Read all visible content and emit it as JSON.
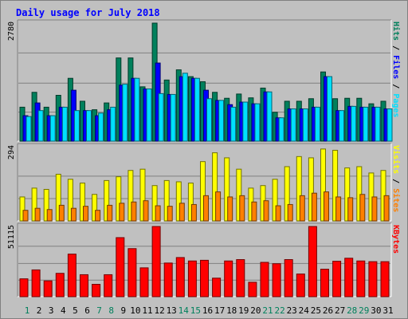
{
  "chart_data": [
    {
      "type": "bar",
      "title": "Daily usage for July 2018",
      "categories": [
        "1",
        "2",
        "3",
        "4",
        "5",
        "6",
        "7",
        "8",
        "9",
        "10",
        "11",
        "12",
        "13",
        "14",
        "15",
        "16",
        "17",
        "18",
        "19",
        "20",
        "21",
        "22",
        "23",
        "24",
        "25",
        "26",
        "27",
        "28",
        "29",
        "30",
        "31"
      ],
      "weekend_days": [
        "1",
        "7",
        "8",
        "14",
        "15",
        "21",
        "22",
        "28",
        "29"
      ],
      "ytick": "2780",
      "ylim": [
        0,
        2780
      ],
      "ylabel": [
        "Pages",
        "Files",
        "Hits"
      ],
      "series": [
        {
          "name": "Hits",
          "color": "#00805c",
          "values": [
            800,
            1150,
            800,
            1080,
            1480,
            940,
            740,
            900,
            1960,
            1960,
            1280,
            2780,
            1440,
            1680,
            1520,
            1400,
            1150,
            1010,
            1110,
            1020,
            1250,
            680,
            940,
            940,
            1000,
            1630,
            1000,
            1010,
            1010,
            880,
            940
          ]
        },
        {
          "name": "Files",
          "color": "#0000ff",
          "values": [
            600,
            900,
            600,
            800,
            1200,
            720,
            600,
            740,
            1320,
            1480,
            1230,
            1840,
            1100,
            1520,
            1480,
            1200,
            960,
            860,
            920,
            880,
            1160,
            550,
            760,
            760,
            800,
            1520,
            720,
            820,
            800,
            800,
            760
          ]
        },
        {
          "name": "Pages",
          "color": "#00e0ff",
          "values": [
            580,
            720,
            600,
            800,
            720,
            720,
            660,
            800,
            1340,
            1480,
            1230,
            1120,
            1100,
            1600,
            1480,
            1000,
            960,
            800,
            920,
            880,
            1160,
            550,
            760,
            760,
            800,
            1520,
            720,
            820,
            800,
            800,
            760
          ]
        }
      ]
    },
    {
      "type": "bar",
      "categories": [
        "1",
        "2",
        "3",
        "4",
        "5",
        "6",
        "7",
        "8",
        "9",
        "10",
        "11",
        "12",
        "13",
        "14",
        "15",
        "16",
        "17",
        "18",
        "19",
        "20",
        "21",
        "22",
        "23",
        "24",
        "25",
        "26",
        "27",
        "28",
        "29",
        "30",
        "31"
      ],
      "ytick": "294",
      "ylim": [
        0,
        294
      ],
      "ylabel": [
        "Sites",
        "Visits"
      ],
      "series": [
        {
          "name": "Visits",
          "color": "#ffff00",
          "values": [
            95,
            130,
            125,
            185,
            165,
            150,
            105,
            160,
            175,
            200,
            205,
            140,
            160,
            155,
            150,
            235,
            270,
            250,
            205,
            130,
            140,
            165,
            215,
            255,
            250,
            285,
            280,
            210,
            215,
            190,
            200
          ]
        },
        {
          "name": "Sites",
          "color": "#ff8000",
          "values": [
            42,
            50,
            45,
            62,
            50,
            58,
            42,
            62,
            70,
            75,
            80,
            60,
            58,
            70,
            65,
            100,
            115,
            95,
            100,
            75,
            80,
            60,
            65,
            100,
            110,
            115,
            95,
            92,
            105,
            95,
            100
          ]
        }
      ]
    },
    {
      "type": "bar",
      "categories": [
        "1",
        "2",
        "3",
        "4",
        "5",
        "6",
        "7",
        "8",
        "9",
        "10",
        "11",
        "12",
        "13",
        "14",
        "15",
        "16",
        "17",
        "18",
        "19",
        "20",
        "21",
        "22",
        "23",
        "24",
        "25",
        "26",
        "27",
        "28",
        "29",
        "30",
        "31"
      ],
      "ytick": "51115",
      "ylim": [
        0,
        51115
      ],
      "ylabel": [
        "KBytes"
      ],
      "series": [
        {
          "name": "KBytes",
          "color": "#ff0000",
          "values": [
            13000,
            19500,
            11500,
            17000,
            31000,
            16000,
            9000,
            16000,
            43000,
            35000,
            21000,
            51115,
            24500,
            28500,
            26000,
            26500,
            13500,
            26000,
            27000,
            10500,
            25000,
            24000,
            27000,
            16500,
            51115,
            20000,
            25800,
            28000,
            26000,
            25500,
            25500
          ]
        }
      ]
    }
  ]
}
